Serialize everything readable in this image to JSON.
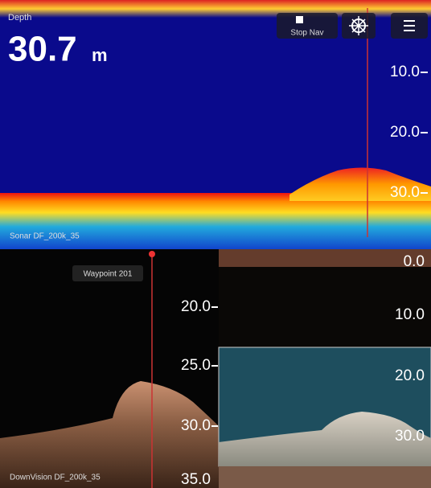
{
  "status": {
    "depth_label": "Depth",
    "depth_value": "30.7",
    "depth_unit": "m"
  },
  "controls": {
    "stop_nav": "Stop Nav"
  },
  "sonar": {
    "label": "Sonar DF_200k_35",
    "scale": [
      "10.0",
      "20.0",
      "30.0"
    ]
  },
  "downvision": {
    "label": "DownVision DF_200k_35",
    "waypoint": "Waypoint 201",
    "scale": [
      "20.0",
      "25.0",
      "30.0",
      "35.0"
    ]
  },
  "sidevision": {
    "scale": [
      "0.0",
      "10.0",
      "20.0",
      "30.0"
    ]
  }
}
